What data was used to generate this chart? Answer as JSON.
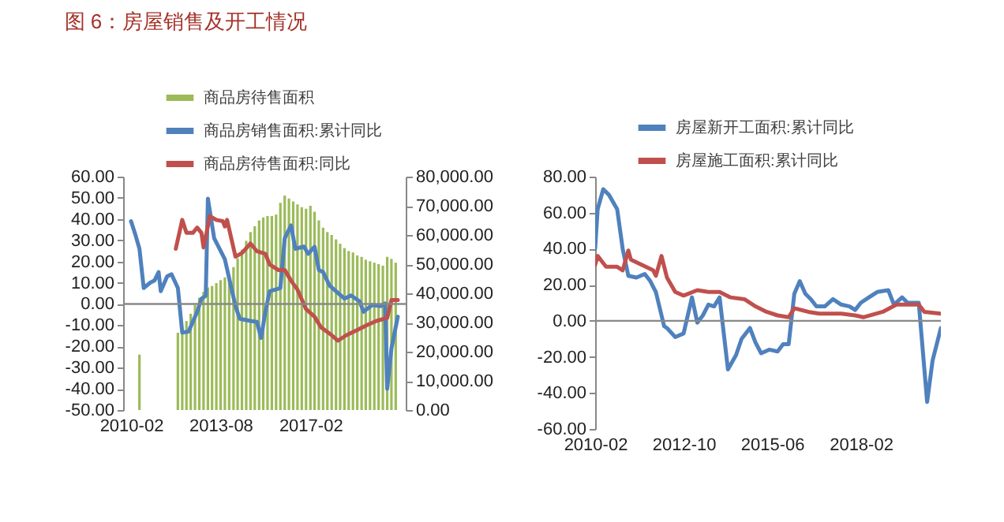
{
  "chart_data": [
    {
      "type": "bar",
      "title": "图 6：房屋销售及开工情况",
      "legend": "top",
      "grid": false,
      "ref_lines": [
        {
          "axis": "y",
          "value": 0,
          "color": "#888888"
        }
      ],
      "xlim": [
        "2010-02",
        "2020-07"
      ],
      "xticks": [
        "2010-02",
        "2013-08",
        "2017-02"
      ],
      "ylim": [
        -50,
        60
      ],
      "yticks": [
        {
          "value": -50,
          "label": "-50.00"
        },
        {
          "value": -40,
          "label": "-40.00"
        },
        {
          "value": -30,
          "label": "-30.00"
        },
        {
          "value": -20,
          "label": "-20.00"
        },
        {
          "value": -10,
          "label": "-10.00"
        },
        {
          "value": 0,
          "label": "0.00"
        },
        {
          "value": 10,
          "label": "10.00"
        },
        {
          "value": 20,
          "label": "20.00"
        },
        {
          "value": 30,
          "label": "30.00"
        },
        {
          "value": 40,
          "label": "40.00"
        },
        {
          "value": 50,
          "label": "50.00"
        },
        {
          "value": 60,
          "label": "60.00"
        }
      ],
      "y2lim": [
        0,
        80000
      ],
      "y2ticks": [
        {
          "value": 0,
          "label": "0.00"
        },
        {
          "value": 10000,
          "label": "10,000.00"
        },
        {
          "value": 20000,
          "label": "20,000.00"
        },
        {
          "value": 30000,
          "label": "30,000.00"
        },
        {
          "value": 40000,
          "label": "40,000.00"
        },
        {
          "value": 50000,
          "label": "50,000.00"
        },
        {
          "value": 60000,
          "label": "60,000.00"
        },
        {
          "value": 70000,
          "label": "70,000.00"
        },
        {
          "value": 80000,
          "label": "80,000.00"
        }
      ],
      "series": [
        {
          "name": "商品房待售面积",
          "type": "bar",
          "axis": "y2",
          "color": "#9bbb59",
          "x": [
            "2010-06",
            "2011-12",
            "2012-02",
            "2012-04",
            "2012-06",
            "2012-08",
            "2012-10",
            "2012-12",
            "2013-02",
            "2013-04",
            "2013-06",
            "2013-08",
            "2013-10",
            "2013-12",
            "2014-02",
            "2014-04",
            "2014-06",
            "2014-08",
            "2014-10",
            "2014-12",
            "2015-02",
            "2015-04",
            "2015-06",
            "2015-08",
            "2015-10",
            "2015-12",
            "2016-02",
            "2016-04",
            "2016-06",
            "2016-08",
            "2016-10",
            "2016-12",
            "2017-02",
            "2017-04",
            "2017-06",
            "2017-08",
            "2017-10",
            "2017-12",
            "2018-02",
            "2018-04",
            "2018-06",
            "2018-08",
            "2018-10",
            "2018-12",
            "2019-02",
            "2019-04",
            "2019-06",
            "2019-08",
            "2019-10",
            "2019-12",
            "2020-02",
            "2020-04",
            "2020-06"
          ],
          "values": [
            19000,
            26500,
            28000,
            30500,
            33000,
            36000,
            38500,
            40500,
            42000,
            42500,
            43500,
            44500,
            45500,
            46000,
            49000,
            52000,
            55000,
            58000,
            61000,
            63000,
            65000,
            66000,
            66500,
            66500,
            67000,
            71000,
            73500,
            72500,
            71500,
            70500,
            69500,
            69000,
            70000,
            68000,
            65000,
            62500,
            61000,
            60000,
            58500,
            57000,
            55500,
            54500,
            54000,
            53000,
            52500,
            51500,
            51000,
            50500,
            50000,
            49500,
            52500,
            51800,
            50500
          ]
        },
        {
          "name": "商品房销售面积:累计同比",
          "type": "line",
          "color": "#4f81bd",
          "x": [
            "2010-02",
            "2010-04",
            "2010-06",
            "2010-08",
            "2010-11",
            "2011-01",
            "2011-03",
            "2011-04",
            "2011-07",
            "2011-09",
            "2011-12",
            "2012-02",
            "2012-05",
            "2012-09",
            "2012-11",
            "2013-01",
            "2013-02",
            "2013-05",
            "2013-08",
            "2013-10",
            "2014-03",
            "2014-05",
            "2014-10",
            "2015-01",
            "2015-03",
            "2015-05",
            "2015-07",
            "2015-12",
            "2016-02",
            "2016-05",
            "2016-07",
            "2016-11",
            "2017-01",
            "2017-04",
            "2017-06",
            "2017-08",
            "2017-11",
            "2018-02",
            "2018-06",
            "2018-09",
            "2019-01",
            "2019-03",
            "2019-07",
            "2019-11",
            "2020-01",
            "2020-02",
            "2020-04",
            "2020-07"
          ],
          "values": [
            39,
            33,
            26,
            7.5,
            10,
            11,
            15,
            6,
            13,
            14,
            7.5,
            -13.5,
            -13,
            -3.7,
            2.5,
            3.8,
            49.6,
            31,
            25,
            21,
            -1,
            -7,
            -8,
            -8.5,
            -16,
            -3.7,
            6,
            7.5,
            31,
            37,
            26,
            27,
            23.6,
            27,
            16,
            15,
            8.7,
            6,
            2.5,
            4,
            1.3,
            -3.7,
            -0.5,
            -1,
            0.2,
            -40,
            -21,
            -6
          ]
        },
        {
          "name": "商品房待售面积:同比",
          "type": "line",
          "color": "#c0504d",
          "x": [
            "2011-11",
            "2012-02",
            "2012-04",
            "2012-07",
            "2012-09",
            "2012-11",
            "2012-12",
            "2013-03",
            "2013-06",
            "2013-09",
            "2013-10",
            "2013-11",
            "2014-03",
            "2014-06",
            "2014-10",
            "2015-01",
            "2015-05",
            "2015-07",
            "2015-11",
            "2016-02",
            "2016-05",
            "2016-08",
            "2016-12",
            "2017-04",
            "2017-07",
            "2017-12",
            "2018-03",
            "2018-07",
            "2018-12",
            "2019-05",
            "2019-09",
            "2020-02",
            "2020-04",
            "2020-07"
          ],
          "values": [
            26,
            39.6,
            33.5,
            33.5,
            36,
            33.5,
            26.6,
            41.4,
            39.6,
            39,
            36.5,
            39.6,
            22.3,
            24,
            28.5,
            24.8,
            23.6,
            18.6,
            16,
            16,
            11,
            6.7,
            -2.4,
            -6,
            -11,
            -14.7,
            -17.3,
            -14.7,
            -12.3,
            -9.8,
            -8,
            -6.6,
            1.8,
            1.8
          ]
        }
      ]
    },
    {
      "type": "line",
      "legend": "top",
      "grid": false,
      "ref_lines": [
        {
          "axis": "y",
          "value": 0,
          "color": "#888888"
        }
      ],
      "xlim": [
        "2010-02",
        "2020-07"
      ],
      "xticks": [
        "2010-02",
        "2012-10",
        "2015-06",
        "2018-02"
      ],
      "ylim": [
        -60,
        80
      ],
      "yticks": [
        {
          "value": -60,
          "label": "-60.00"
        },
        {
          "value": -40,
          "label": "-40.00"
        },
        {
          "value": -20,
          "label": "-20.00"
        },
        {
          "value": 0,
          "label": "0.00"
        },
        {
          "value": 20,
          "label": "20.00"
        },
        {
          "value": 40,
          "label": "40.00"
        },
        {
          "value": 60,
          "label": "60.00"
        },
        {
          "value": 80,
          "label": "80.00"
        }
      ],
      "series": [
        {
          "name": "房屋新开工面积:累计同比",
          "color": "#4f81bd",
          "x": [
            "2010-02",
            "2010-03",
            "2010-05",
            "2010-07",
            "2010-10",
            "2010-12",
            "2011-02",
            "2011-05",
            "2011-08",
            "2011-10",
            "2011-12",
            "2012-03",
            "2012-04",
            "2012-07",
            "2012-10",
            "2013-01",
            "2013-03",
            "2013-05",
            "2013-07",
            "2013-09",
            "2013-11",
            "2014-02",
            "2014-05",
            "2014-07",
            "2014-10",
            "2014-12",
            "2015-02",
            "2015-05",
            "2015-08",
            "2015-10",
            "2015-12",
            "2016-02",
            "2016-04",
            "2016-06",
            "2016-08",
            "2016-10",
            "2017-01",
            "2017-04",
            "2017-07",
            "2017-10",
            "2017-12",
            "2018-02",
            "2018-05",
            "2018-08",
            "2018-12",
            "2019-02",
            "2019-05",
            "2019-07",
            "2019-11",
            "2020-02",
            "2020-04",
            "2020-07"
          ],
          "values": [
            40,
            62,
            73,
            70,
            62,
            40,
            25,
            24,
            26,
            22,
            16,
            -3,
            -4,
            -9,
            -7,
            13,
            -1,
            3,
            9,
            8,
            13,
            -27,
            -19,
            -10,
            -4,
            -12,
            -18,
            -16,
            -17,
            -13,
            -13,
            15,
            22,
            15,
            12,
            8,
            8,
            12,
            9,
            8,
            6,
            10,
            13,
            16,
            17,
            9,
            13,
            10,
            10,
            -45,
            -22,
            -4
          ]
        },
        {
          "name": "房屋施工面积:累计同比",
          "color": "#c0504d",
          "x": [
            "2010-02",
            "2010-03",
            "2010-06",
            "2010-10",
            "2010-12",
            "2011-02",
            "2011-03",
            "2011-07",
            "2011-11",
            "2011-12",
            "2012-02",
            "2012-04",
            "2012-07",
            "2012-10",
            "2013-03",
            "2013-07",
            "2013-11",
            "2014-03",
            "2014-08",
            "2014-12",
            "2015-04",
            "2015-08",
            "2015-12",
            "2016-02",
            "2016-07",
            "2016-11",
            "2017-07",
            "2017-12",
            "2018-03",
            "2018-10",
            "2019-03",
            "2019-11",
            "2020-01",
            "2020-07"
          ],
          "values": [
            31,
            36,
            30,
            30,
            28,
            39,
            34,
            31,
            28,
            25,
            36,
            24,
            16,
            14,
            17,
            16,
            16,
            13,
            12,
            8,
            5,
            3,
            2,
            7,
            5,
            4,
            4,
            3,
            2,
            5,
            9,
            9,
            5,
            4
          ]
        }
      ]
    }
  ]
}
